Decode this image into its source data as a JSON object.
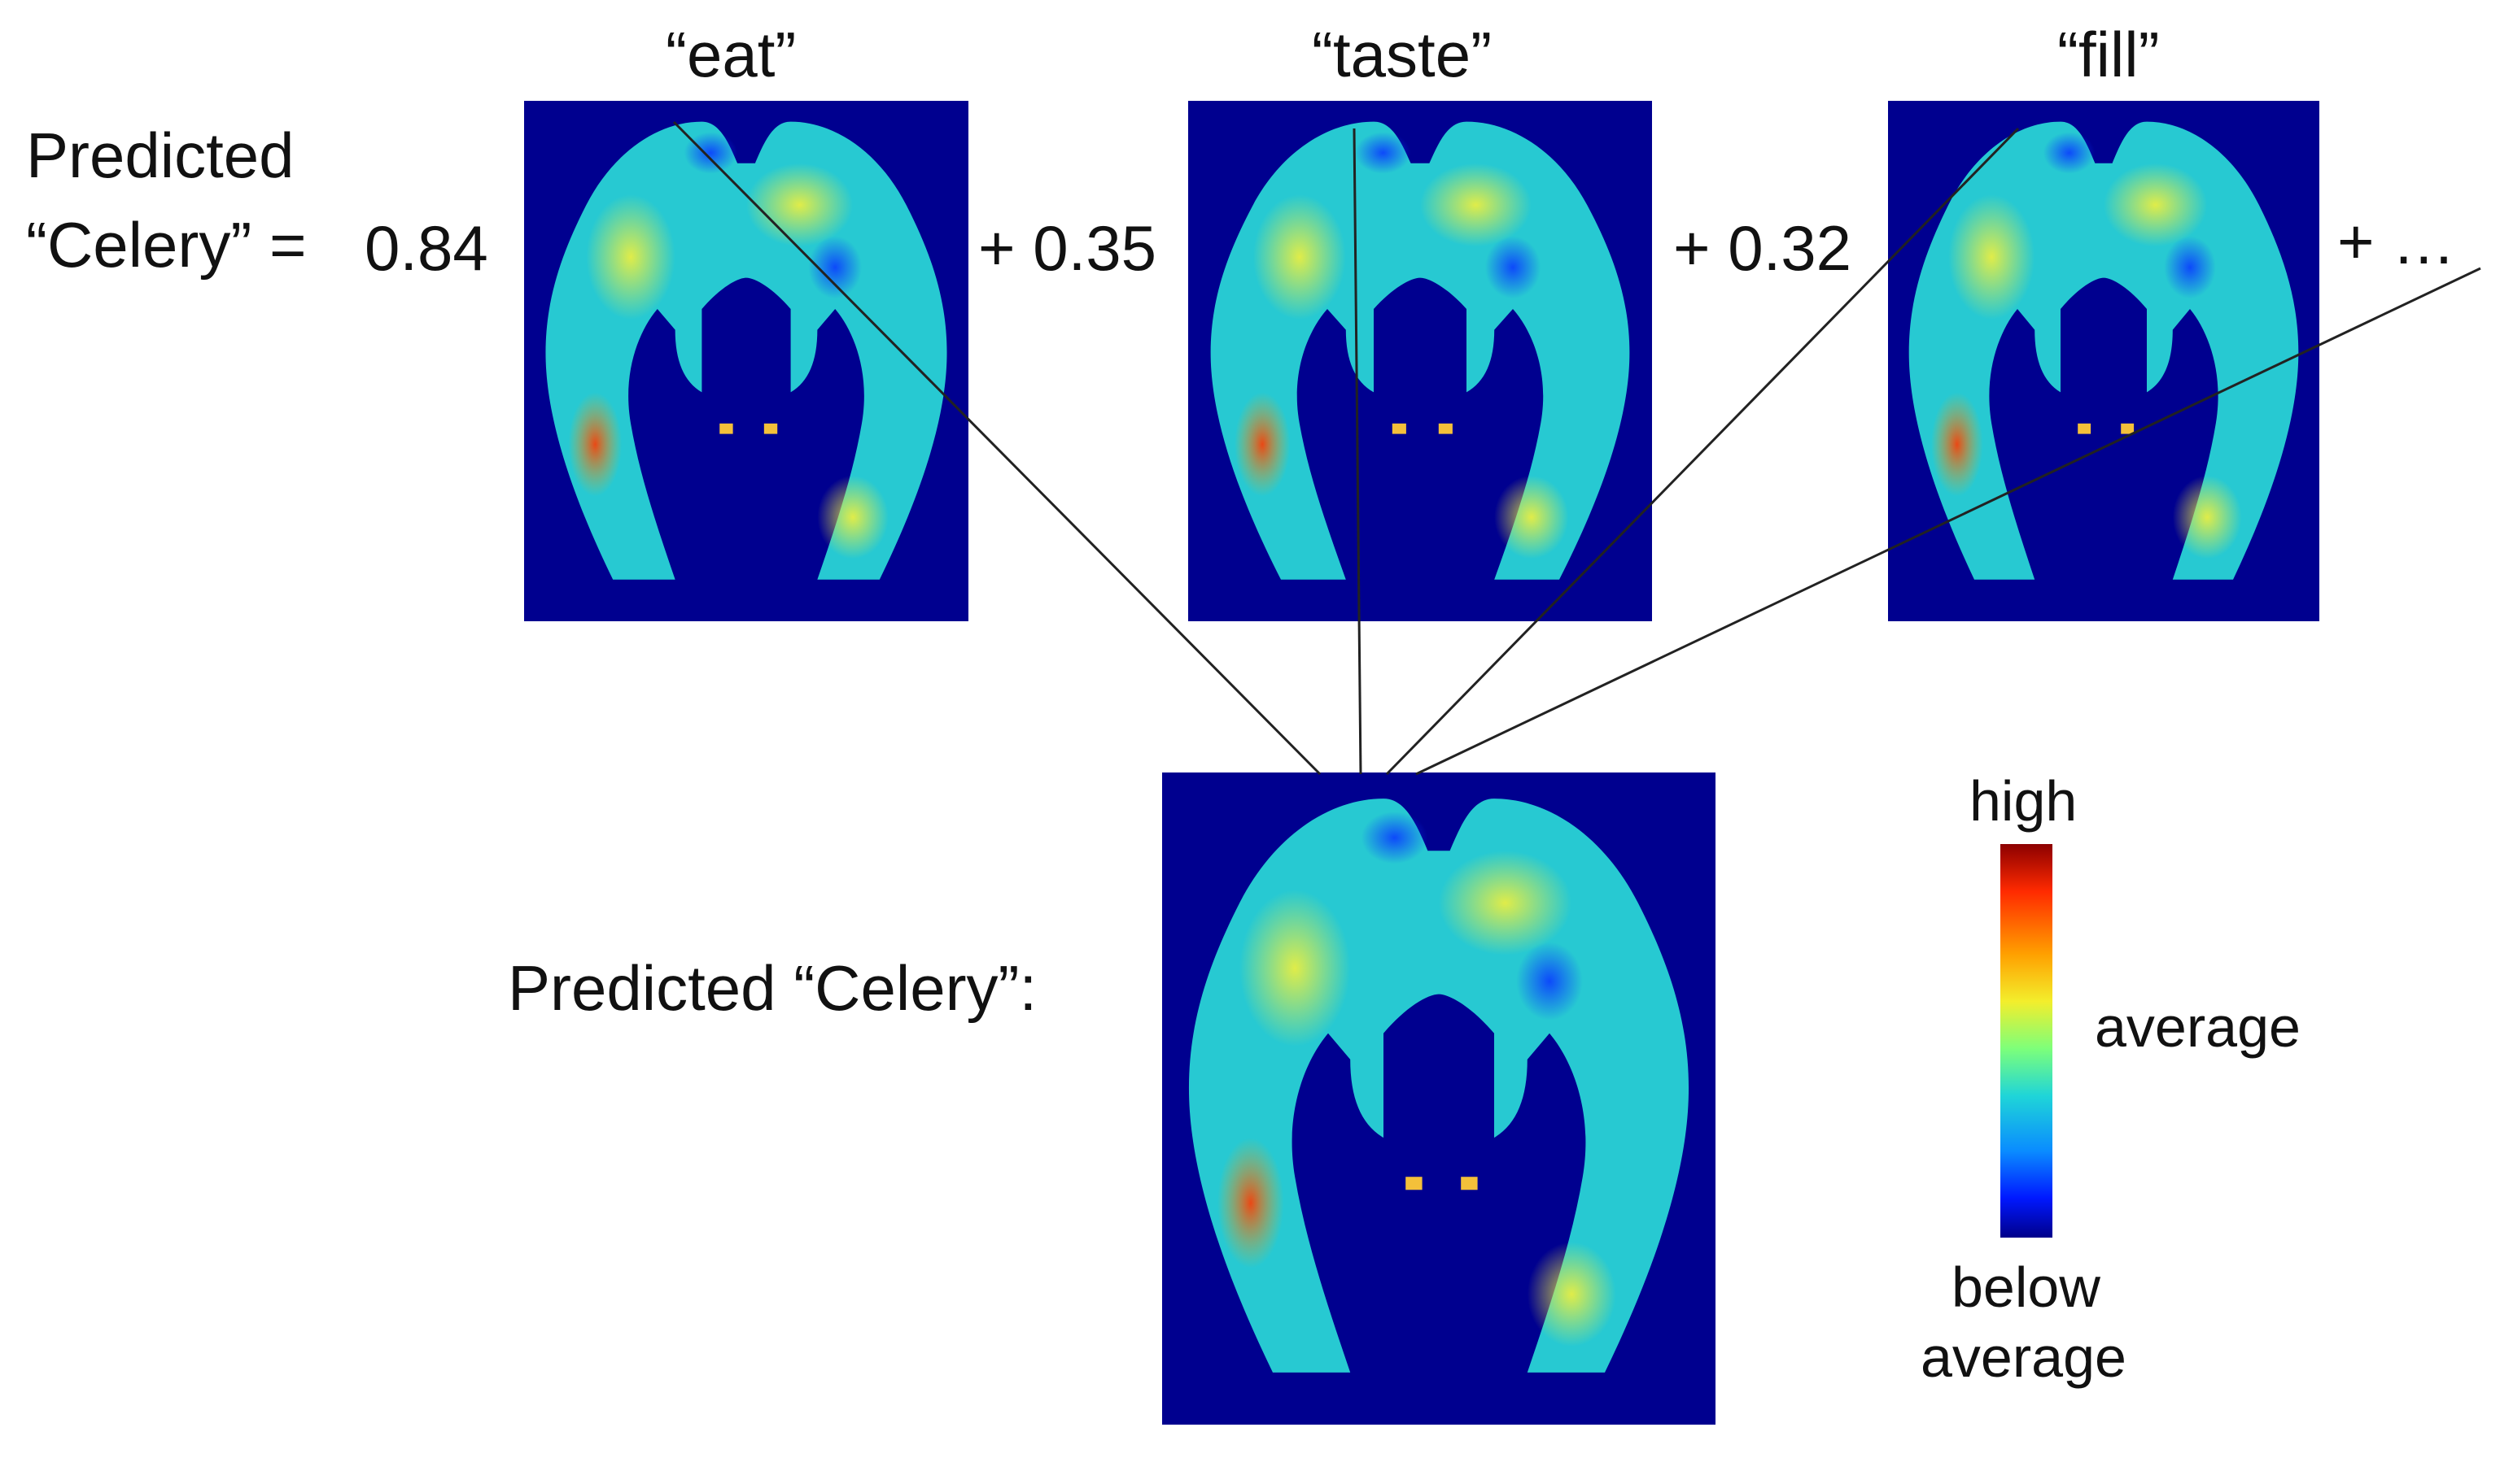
{
  "equation": {
    "line1": "Predicted",
    "line2": "“Celery” =",
    "coef1": "0.84",
    "coef2": "+ 0.35",
    "coef3": "+ 0.32",
    "ellipsis": "+ …"
  },
  "panels": [
    {
      "label": "“eat”"
    },
    {
      "label": "“taste”"
    },
    {
      "label": "“fill”"
    }
  ],
  "result_label": "Predicted “Celery”:",
  "colorbar": {
    "high": "high",
    "mid": "average",
    "low_line1": "below",
    "low_line2": "average"
  },
  "colors": {
    "background": "#00008f",
    "brain_fill": "#27c9d2",
    "connector": "#222222"
  }
}
